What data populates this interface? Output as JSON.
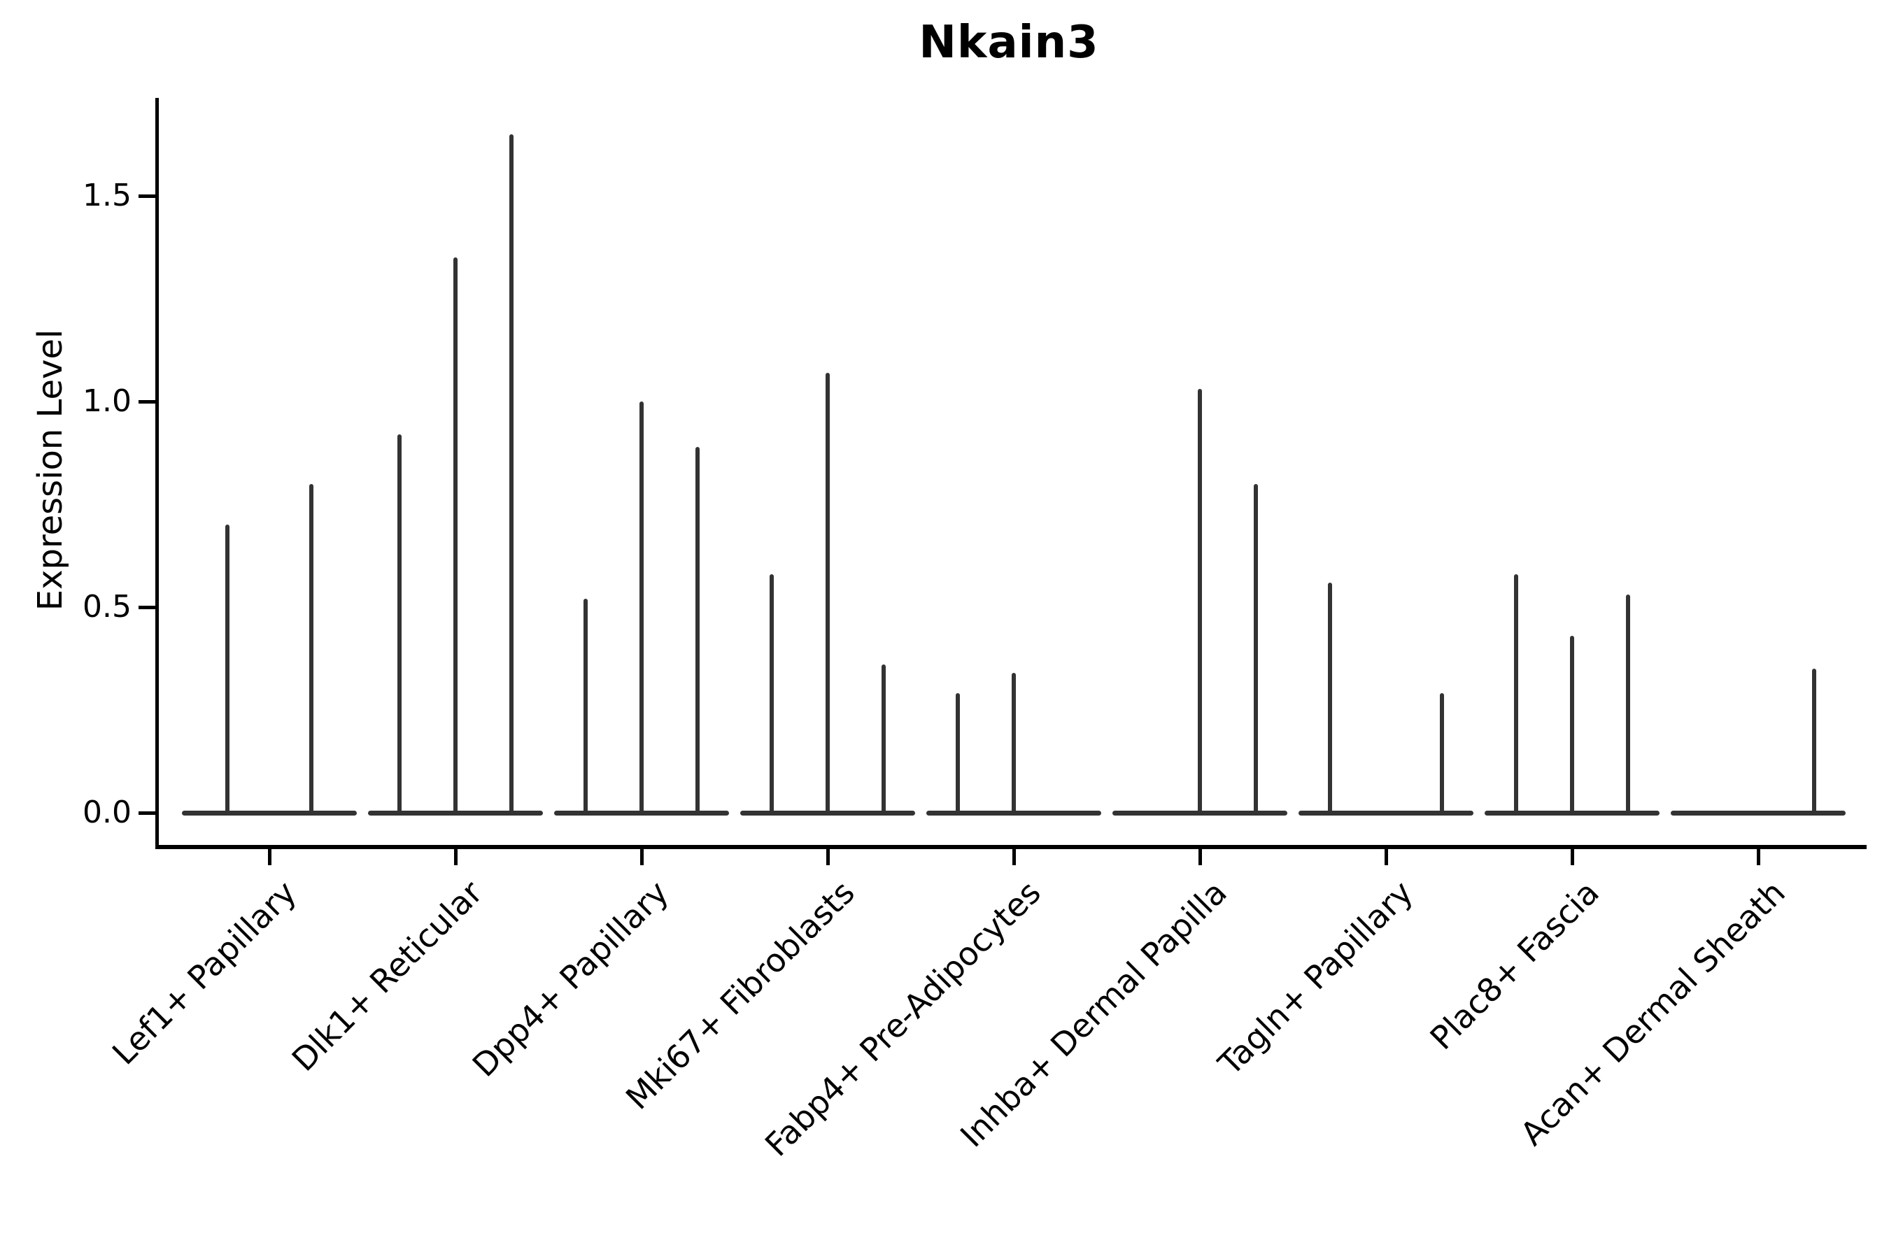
{
  "figure": {
    "background": "#ffffff",
    "ink_color": "#333333",
    "axis_color": "#000000"
  },
  "chart_data": {
    "type": "violin",
    "title": "Nkain3",
    "ylabel": "Expression Level",
    "xlabel": "",
    "grid": false,
    "legend_position": "none",
    "ylim": [
      -0.08,
      1.74
    ],
    "yticks": [
      {
        "value": 0.0,
        "label": "0.0"
      },
      {
        "value": 0.5,
        "label": "0.5"
      },
      {
        "value": 1.0,
        "label": "1.0"
      },
      {
        "value": 1.5,
        "label": "1.5"
      }
    ],
    "categories": [
      "Lef1+ Papillary",
      "Dlk1+ Reticular",
      "Dpp4+ Papillary",
      "Mki67+ Fibroblasts",
      "Fabp4+ Pre-Adipocytes",
      "Inhba+ Dermal Papilla",
      "Tagln+ Papillary",
      "Plac8+ Fascia",
      "Acan+ Dermal Sheath"
    ],
    "groups": [
      {
        "category": "Lef1+ Papillary",
        "violins": [
          {
            "dx": -60,
            "peak": 0.7
          },
          {
            "dx": 60,
            "peak": 0.8
          }
        ]
      },
      {
        "category": "Dlk1+ Reticular",
        "violins": [
          {
            "dx": -80,
            "peak": 0.92
          },
          {
            "dx": 0,
            "peak": 1.35
          },
          {
            "dx": 80,
            "peak": 1.65
          }
        ]
      },
      {
        "category": "Dpp4+ Papillary",
        "violins": [
          {
            "dx": -80,
            "peak": 0.52
          },
          {
            "dx": 0,
            "peak": 1.0
          },
          {
            "dx": 80,
            "peak": 0.89
          }
        ]
      },
      {
        "category": "Mki67+ Fibroblasts",
        "violins": [
          {
            "dx": -80,
            "peak": 0.58
          },
          {
            "dx": 0,
            "peak": 1.07
          },
          {
            "dx": 80,
            "peak": 0.36
          }
        ]
      },
      {
        "category": "Fabp4+ Pre-Adipocytes",
        "violins": [
          {
            "dx": -80,
            "peak": 0.29
          },
          {
            "dx": 0,
            "peak": 0.34
          }
        ]
      },
      {
        "category": "Inhba+ Dermal Papilla",
        "violins": [
          {
            "dx": 0,
            "peak": 1.03
          },
          {
            "dx": 80,
            "peak": 0.8
          }
        ]
      },
      {
        "category": "Tagln+ Papillary",
        "violins": [
          {
            "dx": -80,
            "peak": 0.56
          },
          {
            "dx": 80,
            "peak": 0.29
          }
        ]
      },
      {
        "category": "Plac8+ Fascia",
        "violins": [
          {
            "dx": -80,
            "peak": 0.58
          },
          {
            "dx": 0,
            "peak": 0.43
          },
          {
            "dx": 80,
            "peak": 0.53
          }
        ]
      },
      {
        "category": "Acan+ Dermal Sheath",
        "violins": [
          {
            "dx": 80,
            "peak": 0.35
          }
        ]
      }
    ]
  }
}
